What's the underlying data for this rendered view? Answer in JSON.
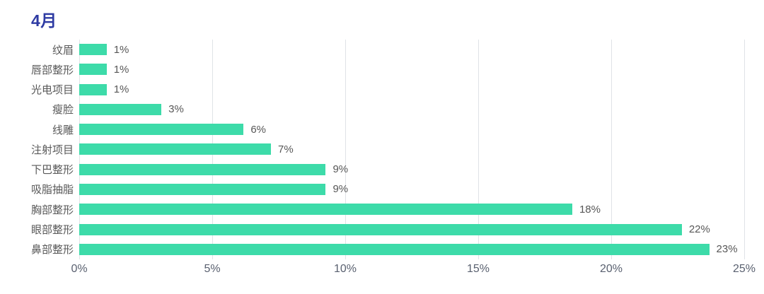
{
  "header": {
    "title": "4月"
  },
  "colors": {
    "title": "#2e3ba3",
    "bar": "#3ddba9",
    "gridline": "#e0e3e7",
    "category_label": "#595959",
    "value_label": "#575757",
    "tick_label": "#5a6170"
  },
  "chart_data": {
    "type": "bar",
    "orientation": "horizontal",
    "title": "4月",
    "categories_top_to_bottom": [
      "纹眉",
      "唇部整形",
      "光电项目",
      "瘦脸",
      "线雕",
      "注射项目",
      "下巴整形",
      "吸脂抽脂",
      "胸部整形",
      "眼部整形",
      "鼻部整形"
    ],
    "values": [
      1,
      1,
      1,
      3,
      6,
      7,
      9,
      9,
      18,
      22,
      23
    ],
    "value_labels": [
      "1%",
      "1%",
      "1%",
      "3%",
      "6%",
      "7%",
      "9%",
      "9%",
      "18%",
      "22%",
      "23%"
    ],
    "x_ticks": [
      "0%",
      "5%",
      "10%",
      "15%",
      "20%",
      "25%"
    ],
    "x_tick_values": [
      0,
      5,
      10,
      15,
      20,
      25
    ],
    "xlim": [
      0,
      25
    ],
    "xlabel": "",
    "ylabel": "",
    "grid": true,
    "legend": false
  }
}
